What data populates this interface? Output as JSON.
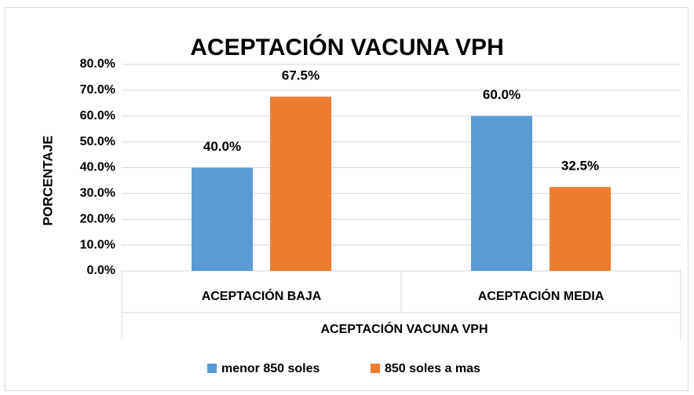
{
  "chart_data": {
    "type": "bar",
    "title": "ACEPTACIÓN VACUNA VPH",
    "x_label": "ACEPTACIÓN VACUNA VPH",
    "y_label": "PORCENTAJE",
    "categories": [
      "ACEPTACIÓN BAJA",
      "ACEPTACIÓN MEDIA"
    ],
    "series": [
      {
        "name": "menor 850 soles",
        "color": "#5b9bd5",
        "values": [
          40,
          60
        ],
        "value_labels": [
          "40.0%",
          "60.0%"
        ]
      },
      {
        "name": "850 soles a mas",
        "color": "#ed7d31",
        "values": [
          67.5,
          32.5
        ],
        "value_labels": [
          "67.5%",
          "32.5%"
        ]
      }
    ],
    "ylim": [
      0,
      80
    ],
    "yticks": [
      {
        "value": 0,
        "label": "0.0%"
      },
      {
        "value": 10,
        "label": "10.0%"
      },
      {
        "value": 20,
        "label": "20.0%"
      },
      {
        "value": 30,
        "label": "30.0%"
      },
      {
        "value": 40,
        "label": "40.0%"
      },
      {
        "value": 50,
        "label": "50.0%"
      },
      {
        "value": 60,
        "label": "60.0%"
      },
      {
        "value": 70,
        "label": "70.0%"
      },
      {
        "value": 80,
        "label": "80.0%"
      }
    ],
    "grid": true,
    "legend": "bottom"
  }
}
